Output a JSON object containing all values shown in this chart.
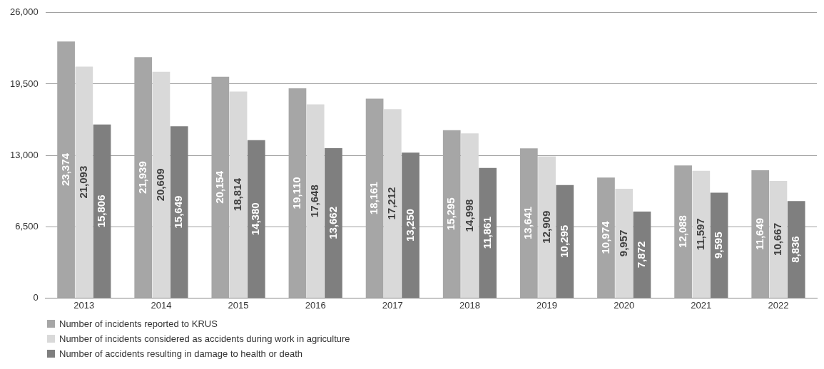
{
  "chart_data": {
    "type": "bar",
    "categories": [
      "2013",
      "2014",
      "2015",
      "2016",
      "2017",
      "2018",
      "2019",
      "2020",
      "2021",
      "2022"
    ],
    "series": [
      {
        "name": "Number of incidents reported to KRUS",
        "color": "#a6a6a6",
        "values": [
          23374,
          21939,
          20154,
          19110,
          18161,
          15295,
          13641,
          10974,
          12088,
          11649
        ],
        "value_labels": [
          "23,374",
          "21,939",
          "20,154",
          "19,110",
          "18,161",
          "15,295",
          "13,641",
          "10,974",
          "12,088",
          "11,649"
        ]
      },
      {
        "name": "Number of incidents considered as accidents during work in agriculture",
        "color": "#d9d9d9",
        "values": [
          21093,
          20609,
          18814,
          17648,
          17212,
          14998,
          12909,
          9957,
          11597,
          10667
        ],
        "value_labels": [
          "21,093",
          "20,609",
          "18,814",
          "17,648",
          "17,212",
          "14,998",
          "12,909",
          "9,957",
          "11,597",
          "10,667"
        ]
      },
      {
        "name": "Number of accidents resulting in damage to health or death",
        "color": "#7f7f7f",
        "values": [
          15806,
          15649,
          14380,
          13662,
          13250,
          11861,
          10295,
          7872,
          9595,
          8836
        ],
        "value_labels": [
          "15,806",
          "15,649",
          "14,380",
          "13,662",
          "13,250",
          "11,861",
          "10,295",
          "7,872",
          "9,595",
          "8,836"
        ]
      }
    ],
    "ylim": [
      0,
      26000
    ],
    "yticks": [
      0,
      {
        "value": 6500,
        "label": "6,500"
      },
      {
        "value": 13000,
        "label": "13,000"
      },
      {
        "value": 19500,
        "label": "19,500"
      },
      {
        "value": 26000,
        "label": "26,000"
      }
    ],
    "grid": "y",
    "legend": "bottom left"
  }
}
